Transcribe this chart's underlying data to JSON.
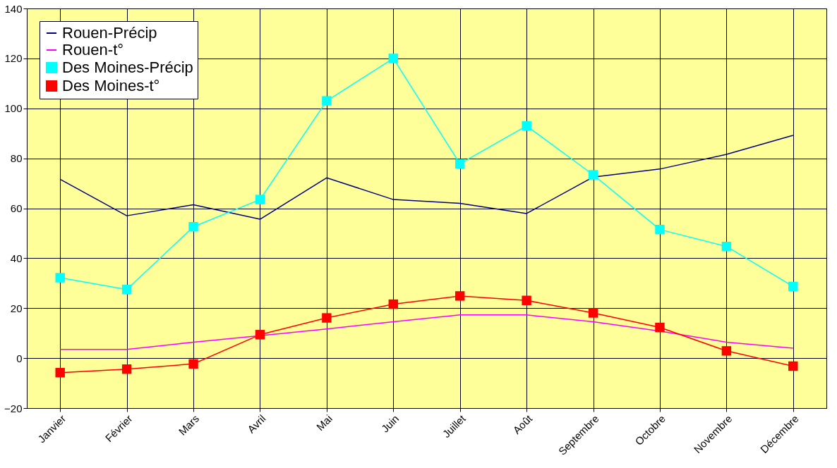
{
  "chart_data": {
    "type": "line",
    "categories": [
      "Janvier",
      "Février",
      "Mars",
      "Avril",
      "Mai",
      "Juin",
      "Juillet",
      "Août",
      "Septembre",
      "Octobre",
      "Novembre",
      "Décembre"
    ],
    "series": [
      {
        "name": "Rouen-Précip",
        "color": "#000080",
        "marker": "none",
        "values": [
          71.6,
          57,
          61.4,
          55.6,
          72.2,
          63.5,
          62,
          57.9,
          72.5,
          75.7,
          81.6,
          89.2
        ]
      },
      {
        "name": "Rouen-t°",
        "color": "#ff00ff",
        "marker": "none",
        "values": [
          3.5,
          3.5,
          6.4,
          9,
          11.7,
          14.6,
          17.3,
          17.3,
          14.6,
          10.8,
          6.4,
          4
        ]
      },
      {
        "name": "Des Moines-Précip",
        "color": "#00ffff",
        "marker": "square",
        "values": [
          32.2,
          27.5,
          52.6,
          63.5,
          103,
          120,
          77.8,
          93,
          73.4,
          51.5,
          44.7,
          28.7
        ]
      },
      {
        "name": "Des Moines-t°",
        "color": "#ff0000",
        "marker": "square",
        "values": [
          -5.8,
          -4.4,
          -2.3,
          9.4,
          16.1,
          21.6,
          24.9,
          23.1,
          18.1,
          12.3,
          2.9,
          -3.2
        ]
      }
    ],
    "ylim": [
      -20,
      140
    ],
    "yticks": [
      -20,
      0,
      20,
      40,
      60,
      80,
      100,
      120,
      140
    ],
    "grid": true,
    "legend": "top left",
    "line_style": "solid"
  }
}
